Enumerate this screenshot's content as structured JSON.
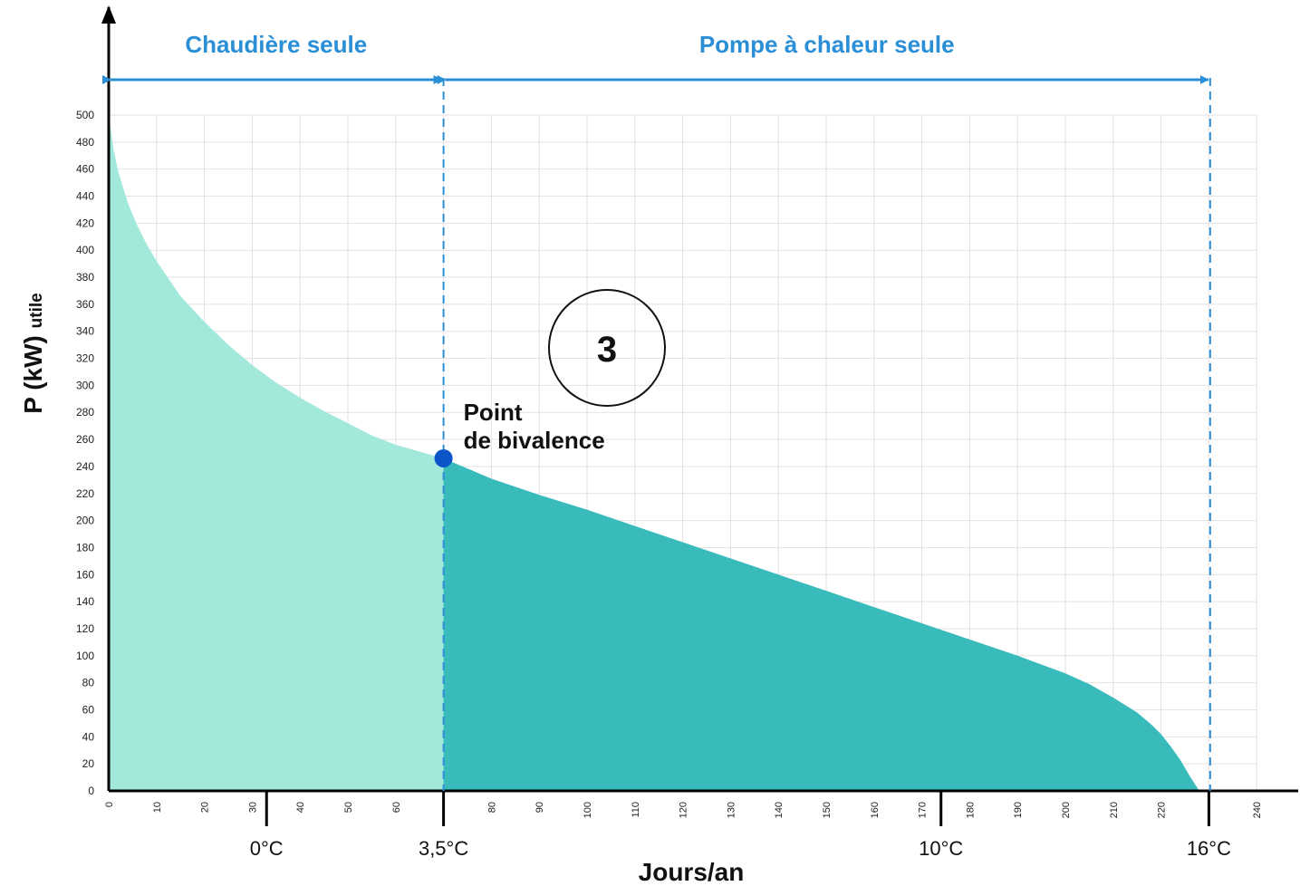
{
  "chart_data": {
    "type": "area",
    "xlabel": "Jours/an",
    "ylabel": "P (kW)",
    "ylabel_sub": "utile",
    "xlim": [
      0,
      240
    ],
    "ylim": [
      0,
      500
    ],
    "x_ticks": [
      0,
      10,
      20,
      30,
      40,
      50,
      60,
      70,
      80,
      90,
      100,
      110,
      120,
      130,
      140,
      150,
      160,
      170,
      180,
      190,
      200,
      210,
      220,
      230,
      240
    ],
    "x_tick_labels": [
      "0",
      "10",
      "20",
      "30",
      "40",
      "50",
      "60",
      "",
      "80",
      "90",
      "100",
      "110",
      "120",
      "130",
      "140",
      "150",
      "160",
      "170",
      "180",
      "190",
      "200",
      "210",
      "220",
      "",
      "240"
    ],
    "y_ticks": [
      0,
      20,
      40,
      60,
      80,
      100,
      120,
      140,
      160,
      180,
      200,
      220,
      240,
      260,
      280,
      300,
      320,
      340,
      360,
      380,
      400,
      420,
      440,
      460,
      480,
      500
    ],
    "grid": true,
    "series": [
      {
        "x": [
          0,
          1,
          2,
          4,
          6,
          8,
          10,
          15,
          20,
          25,
          30,
          35,
          40,
          45,
          50,
          55,
          60,
          65,
          70,
          80,
          90,
          100,
          110,
          120,
          130,
          140,
          150,
          160,
          170,
          180,
          190,
          200,
          205,
          210,
          215,
          218,
          220,
          222,
          224,
          226,
          228
        ],
        "y": [
          500,
          475,
          458,
          435,
          418,
          404,
          392,
          366,
          347,
          330,
          315,
          302,
          291,
          281,
          272,
          263,
          256,
          251,
          246,
          231,
          219,
          208,
          196,
          184,
          172,
          160,
          148,
          136,
          124,
          112,
          100,
          87,
          79,
          69,
          58,
          49,
          42,
          33,
          23,
          11,
          0
        ]
      }
    ],
    "regions": [
      {
        "label": "Chaudière seule",
        "x_start": 0,
        "x_end": 70,
        "color": "#a2e9dc"
      },
      {
        "label": "Pompe à chaleur seule",
        "x_start": 70,
        "x_end": 228,
        "color": "#39bbbc"
      }
    ],
    "bivalence_point": {
      "x": 70,
      "y": 246,
      "label_lines": [
        "Point",
        "de bivalence"
      ]
    },
    "temperature_markers": [
      {
        "x": 33,
        "label": "0°C"
      },
      {
        "x": 70,
        "label": "3,5°C"
      },
      {
        "x": 174,
        "label": "10°C"
      },
      {
        "x": 230,
        "label": "16°C"
      }
    ],
    "zone_marker": "3",
    "colors": {
      "arrow": "#2a8fd6",
      "point": "#0b55c9",
      "grid": "#e2e2e2",
      "boiler_zone": "#a2e9dc",
      "pac_zone": "#39bbbc"
    }
  }
}
